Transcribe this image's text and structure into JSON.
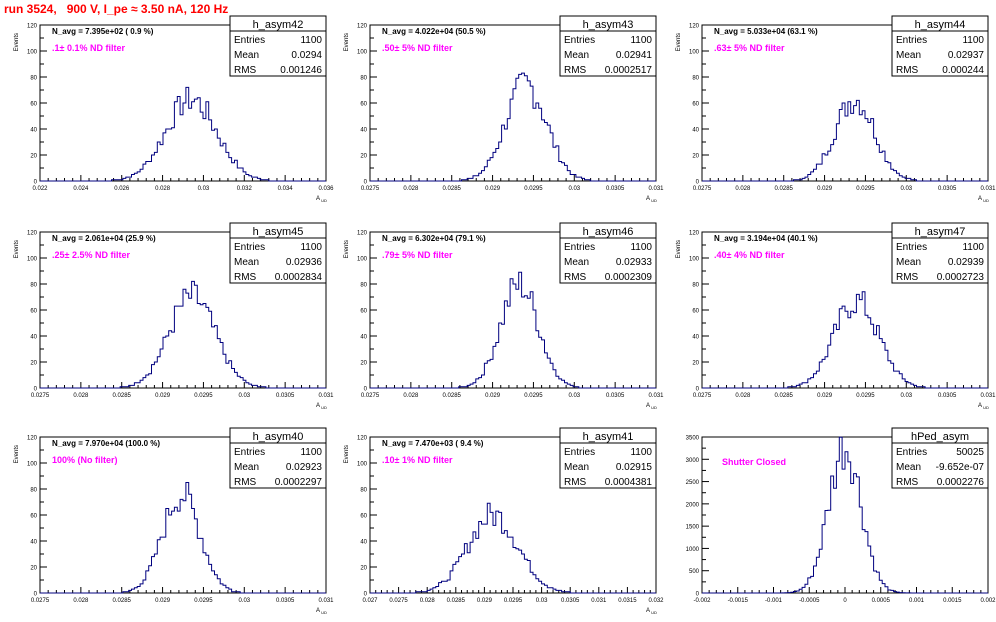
{
  "header": {
    "title": "run 3524,   900 V, I_pe ≈ 3.50 nA, 120 Hz"
  },
  "chart_data": [
    {
      "type": "histogram",
      "name": "h_asym42",
      "ylabel": "Events",
      "xlabel": "A",
      "xlabel_sub": "UD",
      "xlim": [
        0.022,
        0.036
      ],
      "ylim": [
        0,
        120
      ],
      "xticks": [
        "0.022",
        "0.024",
        "0.026",
        "0.028",
        "0.03",
        "0.032",
        "0.034",
        "0.036"
      ],
      "yticks": [
        "0",
        "20",
        "40",
        "60",
        "80",
        "100",
        "120"
      ],
      "stats": {
        "entries_label": "Entries",
        "entries": "1100",
        "mean_label": "Mean",
        "mean": "0.0294",
        "rms_label": "RMS",
        "rms": "0.001246"
      },
      "navg": "N_avg = 7.395e+02 ( 0.9 %)",
      "filter": ".1± 0.1% ND filter",
      "mean_value": 0.0294,
      "rms_value": 0.001246,
      "peak": 63
    },
    {
      "type": "histogram",
      "name": "h_asym43",
      "ylabel": "Events",
      "xlabel": "A",
      "xlabel_sub": "UD",
      "xlim": [
        0.0275,
        0.031
      ],
      "ylim": [
        0,
        120
      ],
      "xticks": [
        "0.0275",
        "0.028",
        "0.0285",
        "0.029",
        "0.0295",
        "0.03",
        "0.0305",
        "0.031"
      ],
      "yticks": [
        "0",
        "20",
        "40",
        "60",
        "80",
        "100",
        "120"
      ],
      "stats": {
        "entries_label": "Entries",
        "entries": "1100",
        "mean_label": "Mean",
        "mean": "0.02941",
        "rms_label": "RMS",
        "rms": "0.0002517"
      },
      "navg": "N_avg = 4.022e+04 (50.5 %)",
      "filter": ".50± 5% ND filter",
      "mean_value": 0.02941,
      "rms_value": 0.0002517,
      "peak": 74
    },
    {
      "type": "histogram",
      "name": "h_asym44",
      "ylabel": "Events",
      "xlabel": "A",
      "xlabel_sub": "UD",
      "xlim": [
        0.0275,
        0.031
      ],
      "ylim": [
        0,
        120
      ],
      "xticks": [
        "0.0275",
        "0.028",
        "0.0285",
        "0.029",
        "0.0295",
        "0.03",
        "0.0305",
        "0.031"
      ],
      "yticks": [
        "0",
        "20",
        "40",
        "60",
        "80",
        "100",
        "120"
      ],
      "stats": {
        "entries_label": "Entries",
        "entries": "1100",
        "mean_label": "Mean",
        "mean": "0.02937",
        "rms_label": "RMS",
        "rms": "0.000244"
      },
      "navg": "N_avg = 5.033e+04 (63.1 %)",
      "filter": ".63± 5% ND filter",
      "mean_value": 0.02937,
      "rms_value": 0.000244,
      "peak": 63
    },
    {
      "type": "histogram",
      "name": "h_asym45",
      "ylabel": "Events",
      "xlabel": "A",
      "xlabel_sub": "UD",
      "xlim": [
        0.0275,
        0.031
      ],
      "ylim": [
        0,
        120
      ],
      "xticks": [
        "0.0275",
        "0.028",
        "0.0285",
        "0.029",
        "0.0295",
        "0.03",
        "0.0305",
        "0.031"
      ],
      "yticks": [
        "0",
        "20",
        "40",
        "60",
        "80",
        "100",
        "120"
      ],
      "stats": {
        "entries_label": "Entries",
        "entries": "1100",
        "mean_label": "Mean",
        "mean": "0.02936",
        "rms_label": "RMS",
        "rms": "0.0002834"
      },
      "navg": "N_avg = 2.061e+04 (25.9 %)",
      "filter": ".25± 2.5% ND filter",
      "mean_value": 0.02936,
      "rms_value": 0.0002834,
      "peak": 70
    },
    {
      "type": "histogram",
      "name": "h_asym46",
      "ylabel": "Events",
      "xlabel": "A",
      "xlabel_sub": "UD",
      "xlim": [
        0.0275,
        0.031
      ],
      "ylim": [
        0,
        120
      ],
      "xticks": [
        "0.0275",
        "0.028",
        "0.0285",
        "0.029",
        "0.0295",
        "0.03",
        "0.0305",
        "0.031"
      ],
      "yticks": [
        "0",
        "20",
        "40",
        "60",
        "80",
        "100",
        "120"
      ],
      "stats": {
        "entries_label": "Entries",
        "entries": "1100",
        "mean_label": "Mean",
        "mean": "0.02933",
        "rms_label": "RMS",
        "rms": "0.0002309"
      },
      "navg": "N_avg = 6.302e+04 (79.1 %)",
      "filter": ".79± 5% ND filter",
      "mean_value": 0.02933,
      "rms_value": 0.0002309,
      "peak": 80
    },
    {
      "type": "histogram",
      "name": "h_asym47",
      "ylabel": "Events",
      "xlabel": "A",
      "xlabel_sub": "UD",
      "xlim": [
        0.0275,
        0.031
      ],
      "ylim": [
        0,
        120
      ],
      "xticks": [
        "0.0275",
        "0.028",
        "0.0285",
        "0.029",
        "0.0295",
        "0.03",
        "0.0305",
        "0.031"
      ],
      "yticks": [
        "0",
        "20",
        "40",
        "60",
        "80",
        "100",
        "120"
      ],
      "stats": {
        "entries_label": "Entries",
        "entries": "1100",
        "mean_label": "Mean",
        "mean": "0.02939",
        "rms_label": "RMS",
        "rms": "0.0002723"
      },
      "navg": "N_avg = 3.194e+04 (40.1 %)",
      "filter": ".40± 4% ND filter",
      "mean_value": 0.02939,
      "rms_value": 0.0002723,
      "peak": 67
    },
    {
      "type": "histogram",
      "name": "h_asym40",
      "ylabel": "Events",
      "xlabel": "A",
      "xlabel_sub": "UD",
      "xlim": [
        0.0275,
        0.031
      ],
      "ylim": [
        0,
        120
      ],
      "xticks": [
        "0.0275",
        "0.028",
        "0.0285",
        "0.029",
        "0.0295",
        "0.03",
        "0.0305",
        "0.031"
      ],
      "yticks": [
        "0",
        "20",
        "40",
        "60",
        "80",
        "100",
        "120"
      ],
      "stats": {
        "entries_label": "Entries",
        "entries": "1100",
        "mean_label": "Mean",
        "mean": "0.02923",
        "rms_label": "RMS",
        "rms": "0.0002297"
      },
      "navg": "N_avg = 7.970e+04 (100.0 %)",
      "filter": "100% (No filter)",
      "mean_value": 0.02923,
      "rms_value": 0.0002297,
      "peak": 76
    },
    {
      "type": "histogram",
      "name": "h_asym41",
      "ylabel": "Events",
      "xlabel": "A",
      "xlabel_sub": "UD",
      "xlim": [
        0.027,
        0.032
      ],
      "ylim": [
        0,
        120
      ],
      "xticks": [
        "0.027",
        "0.0275",
        "0.028",
        "0.0285",
        "0.029",
        "0.0295",
        "0.03",
        "0.0305",
        "0.031",
        "0.0315",
        "0.032"
      ],
      "yticks": [
        "0",
        "20",
        "40",
        "60",
        "80",
        "100",
        "120"
      ],
      "stats": {
        "entries_label": "Entries",
        "entries": "1100",
        "mean_label": "Mean",
        "mean": "0.02915",
        "rms_label": "RMS",
        "rms": "0.0004381"
      },
      "navg": "N_avg = 7.470e+03 ( 9.4 %)",
      "filter": ".10± 1% ND filter",
      "mean_value": 0.02915,
      "rms_value": 0.0004381,
      "peak": 60
    },
    {
      "type": "histogram",
      "name": "hPed_asym",
      "ylabel": "",
      "xlabel": "",
      "xlabel_sub": "",
      "xlim": [
        -0.002,
        0.002
      ],
      "ylim": [
        0,
        3600
      ],
      "xticks": [
        "-0.002",
        "-0.0015",
        "-0.001",
        "-0.0005",
        "0",
        "0.0005",
        "0.001",
        "0.0015",
        "0.002"
      ],
      "yticks": [
        "0",
        "500",
        "1000",
        "1500",
        "2000",
        "2500",
        "3000",
        "3500"
      ],
      "stats": {
        "entries_label": "Entries",
        "entries": "50025",
        "mean_label": "Mean",
        "mean": "-9.652e-07",
        "rms_label": "RMS",
        "rms": "0.0002276"
      },
      "navg": "",
      "filter": "Shutter Closed",
      "mean_value": -1e-06,
      "rms_value": 0.0002276,
      "peak": 3400
    }
  ]
}
